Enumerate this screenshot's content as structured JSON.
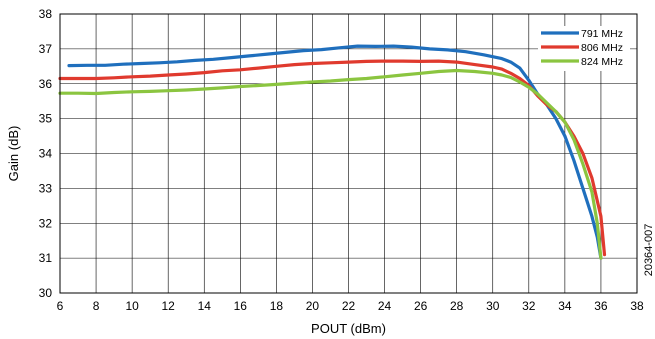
{
  "chart_data": {
    "type": "line",
    "xlabel": "POUT (dBm)",
    "ylabel": "Gain (dB)",
    "xlim": [
      6,
      38
    ],
    "ylim": [
      30,
      38
    ],
    "xticks": [
      6,
      8,
      10,
      12,
      14,
      16,
      18,
      20,
      22,
      24,
      26,
      28,
      30,
      32,
      34,
      36,
      38
    ],
    "yticks": [
      30,
      31,
      32,
      33,
      34,
      35,
      36,
      37,
      38
    ],
    "grid": true,
    "legend_position": "top-right",
    "figure_id": "20364-007",
    "series": [
      {
        "name": "791 MHz",
        "color": "#1f6fbd",
        "x": [
          6.5,
          7.5,
          8.5,
          9.5,
          10.5,
          11.5,
          12.5,
          13.5,
          14.5,
          15.5,
          16.5,
          17.5,
          18.5,
          19.5,
          20.5,
          21.5,
          22.5,
          23.5,
          24.5,
          25.5,
          26.5,
          27.5,
          28.5,
          29.5,
          30.5,
          31.0,
          31.5,
          32.0,
          32.5,
          33.0,
          33.5,
          34.0,
          34.5,
          35.0,
          35.5,
          35.8,
          36.0
        ],
        "y": [
          36.52,
          36.53,
          36.53,
          36.56,
          36.58,
          36.6,
          36.63,
          36.67,
          36.7,
          36.75,
          36.8,
          36.85,
          36.9,
          36.95,
          36.98,
          37.03,
          37.08,
          37.07,
          37.08,
          37.05,
          37.0,
          36.97,
          36.92,
          36.83,
          36.72,
          36.62,
          36.45,
          36.1,
          35.7,
          35.4,
          35.0,
          34.5,
          33.8,
          33.0,
          32.2,
          31.6,
          31.0
        ]
      },
      {
        "name": "806 MHz",
        "color": "#e03a2e",
        "x": [
          6.0,
          7.0,
          8.0,
          9.0,
          10.0,
          11.0,
          12.0,
          13.0,
          14.0,
          15.0,
          16.0,
          17.0,
          18.0,
          19.0,
          20.0,
          21.0,
          22.0,
          23.0,
          24.0,
          25.0,
          26.0,
          27.0,
          28.0,
          29.0,
          30.0,
          30.5,
          31.0,
          31.5,
          32.0,
          32.5,
          33.0,
          33.5,
          34.0,
          34.5,
          35.0,
          35.5,
          36.0,
          36.2
        ],
        "y": [
          36.15,
          36.15,
          36.15,
          36.17,
          36.2,
          36.22,
          36.25,
          36.28,
          36.32,
          36.37,
          36.4,
          36.45,
          36.5,
          36.55,
          36.58,
          36.6,
          36.62,
          36.64,
          36.65,
          36.65,
          36.64,
          36.65,
          36.62,
          36.55,
          36.48,
          36.42,
          36.3,
          36.15,
          35.95,
          35.65,
          35.4,
          35.2,
          34.9,
          34.5,
          34.0,
          33.3,
          32.2,
          31.1
        ]
      },
      {
        "name": "824 MHz",
        "color": "#8bc540",
        "x": [
          6.0,
          7.0,
          8.0,
          9.0,
          10.0,
          11.0,
          12.0,
          13.0,
          14.0,
          15.0,
          16.0,
          17.0,
          18.0,
          19.0,
          20.0,
          21.0,
          22.0,
          23.0,
          24.0,
          25.0,
          26.0,
          27.0,
          28.0,
          29.0,
          30.0,
          30.5,
          31.0,
          31.5,
          32.0,
          32.5,
          33.0,
          33.5,
          34.0,
          34.5,
          35.0,
          35.5,
          35.8,
          36.0
        ],
        "y": [
          35.73,
          35.73,
          35.72,
          35.75,
          35.77,
          35.78,
          35.8,
          35.82,
          35.85,
          35.88,
          35.92,
          35.95,
          35.98,
          36.02,
          36.05,
          36.08,
          36.12,
          36.15,
          36.2,
          36.25,
          36.3,
          36.35,
          36.38,
          36.35,
          36.3,
          36.25,
          36.18,
          36.05,
          35.9,
          35.7,
          35.45,
          35.2,
          34.9,
          34.4,
          33.7,
          32.9,
          32.0,
          31.0
        ]
      }
    ]
  }
}
